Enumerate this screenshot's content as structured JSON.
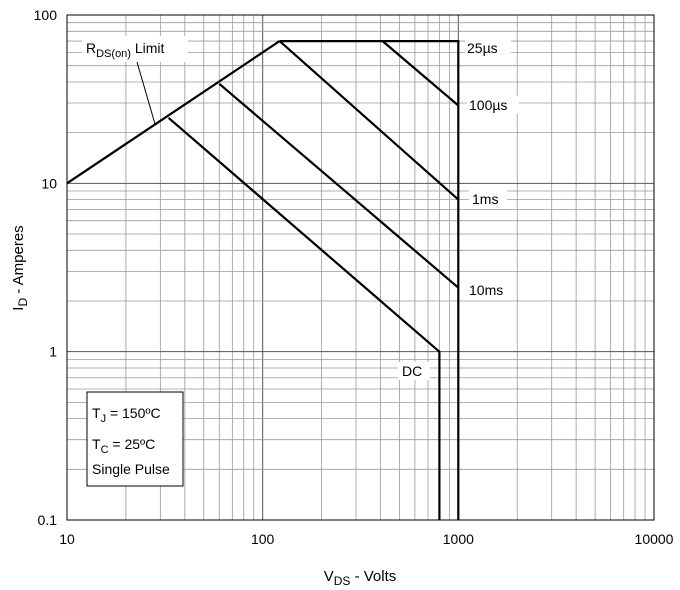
{
  "chart_data": {
    "type": "line",
    "x_scale": "log",
    "y_scale": "log",
    "xlim": [
      10,
      10000
    ],
    "ylim": [
      0.1,
      100
    ],
    "grid": true,
    "x_ticks": [
      "10",
      "100",
      "1000",
      "10000"
    ],
    "y_ticks": [
      "0.1",
      "1",
      "10",
      "100"
    ],
    "xlabel": {
      "main": "V",
      "sub": "DS",
      "rest": " - Volts"
    },
    "ylabel": {
      "main": "I",
      "sub": "D",
      "rest": " - Amperes"
    },
    "series": [
      {
        "name": "RDS(on) Limit",
        "x": [
          10,
          122
        ],
        "y": [
          10,
          70
        ]
      },
      {
        "name": "25µs",
        "x": [
          122,
          1000,
          1000
        ],
        "y": [
          70,
          70,
          0.1
        ]
      },
      {
        "name": "100µs",
        "x": [
          410,
          1000
        ],
        "y": [
          70,
          29
        ]
      },
      {
        "name": "1ms",
        "x": [
          122,
          1000
        ],
        "y": [
          70,
          8
        ]
      },
      {
        "name": "10ms",
        "x": [
          60,
          1000
        ],
        "y": [
          39,
          2.4
        ]
      },
      {
        "name": "DC",
        "x": [
          33,
          800,
          800
        ],
        "y": [
          24.5,
          1,
          0.1
        ]
      }
    ],
    "curve_labels": {
      "rds": {
        "main": "R",
        "sub": "DS(on)",
        "rest": " Limit"
      },
      "us25": "25µs",
      "us100": "100µs",
      "ms1": "1ms",
      "ms10": "10ms",
      "dc": "DC"
    },
    "conditions": {
      "tj": {
        "main": "T",
        "sub": "J",
        "rest": " = 150ºC"
      },
      "tc": {
        "main": "T",
        "sub": "C",
        "rest": " = 25ºC"
      },
      "pulse": "Single Pulse"
    }
  }
}
